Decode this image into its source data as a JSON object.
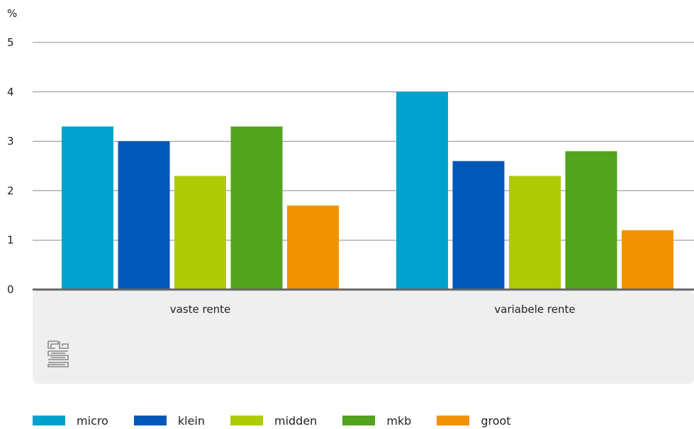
{
  "chart_data": {
    "type": "bar",
    "title": "",
    "ylabel": "%",
    "xlabel": "",
    "ylim": [
      0,
      5
    ],
    "yticks": [
      "0",
      "1",
      "2",
      "3",
      "4",
      "5"
    ],
    "categories": [
      "vaste rente",
      "variabele rente"
    ],
    "series": [
      {
        "name": "micro",
        "color": "#00a1cd",
        "values": [
          3.3,
          4.0
        ]
      },
      {
        "name": "klein",
        "color": "#0058b8",
        "values": [
          3.0,
          2.6
        ]
      },
      {
        "name": "midden",
        "color": "#afcb05",
        "values": [
          2.3,
          2.3
        ]
      },
      {
        "name": "mkb",
        "color": "#53a31d",
        "values": [
          3.3,
          2.8
        ]
      },
      {
        "name": "groot",
        "color": "#f39200",
        "values": [
          1.7,
          1.2
        ]
      }
    ],
    "grid": true,
    "legend_position": "bottom-left"
  },
  "logo": {
    "icon": "cbs-logo-icon",
    "text": "cbs"
  }
}
